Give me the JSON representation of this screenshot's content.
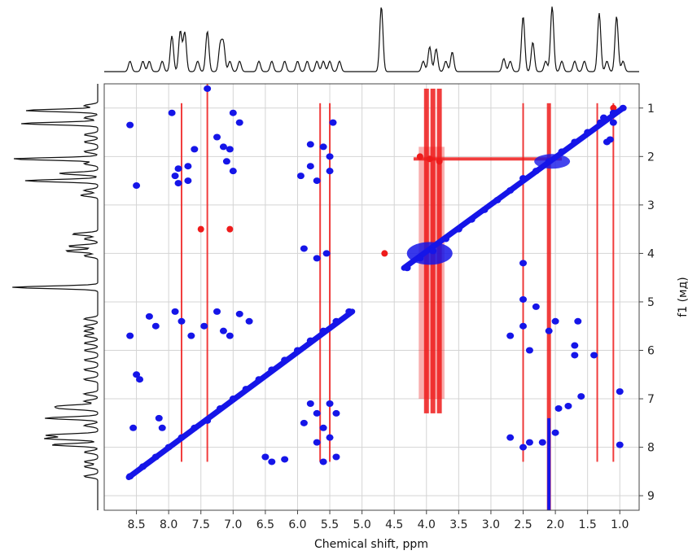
{
  "chart_data": {
    "type": "scatter",
    "subtype": "2D NMR contour plot (positive/negative cross-peaks) with 1D projections",
    "title": "",
    "xlabel": "Chemical shift, ppm",
    "ylabel": "f1 (мд)",
    "xlim": [
      9.0,
      0.7
    ],
    "ylim": [
      0.5,
      9.3
    ],
    "x_ticks": [
      "8.5",
      "8.0",
      "7.5",
      "7.0",
      "6.5",
      "6.0",
      "5.5",
      "5.0",
      "4.5",
      "4.0",
      "3.5",
      "3.0",
      "2.5",
      "2.0",
      "1.5",
      "1.0"
    ],
    "y_ticks": [
      "1",
      "2",
      "3",
      "4",
      "5",
      "6",
      "7",
      "8",
      "9"
    ],
    "grid": true,
    "colors": {
      "positive": "#1515e8",
      "negative": "#ee1b1b",
      "projection": "#111111",
      "grid": "#d4d4d4"
    },
    "series": [
      {
        "name": "positive (blue)",
        "points": [
          [
            8.6,
            8.6
          ],
          [
            8.4,
            8.4
          ],
          [
            8.2,
            8.2
          ],
          [
            8.0,
            8.0
          ],
          [
            7.8,
            7.8
          ],
          [
            7.6,
            7.6
          ],
          [
            7.4,
            7.45
          ],
          [
            7.2,
            7.2
          ],
          [
            7.0,
            7.0
          ],
          [
            6.8,
            6.8
          ],
          [
            6.6,
            6.6
          ],
          [
            6.4,
            6.4
          ],
          [
            6.2,
            6.2
          ],
          [
            6.0,
            6.0
          ],
          [
            5.8,
            5.8
          ],
          [
            5.6,
            5.6
          ],
          [
            5.4,
            5.4
          ],
          [
            5.2,
            5.2
          ],
          [
            4.3,
            4.3
          ],
          [
            4.1,
            4.1
          ],
          [
            3.9,
            3.95
          ],
          [
            3.7,
            3.7
          ],
          [
            3.5,
            3.5
          ],
          [
            3.3,
            3.3
          ],
          [
            3.1,
            3.1
          ],
          [
            2.9,
            2.9
          ],
          [
            2.7,
            2.7
          ],
          [
            2.5,
            2.45
          ],
          [
            2.3,
            2.3
          ],
          [
            2.1,
            2.1
          ],
          [
            1.9,
            1.9
          ],
          [
            1.7,
            1.7
          ],
          [
            1.5,
            1.5
          ],
          [
            1.3,
            1.3
          ],
          [
            1.1,
            1.1
          ],
          [
            0.95,
            1.0
          ],
          [
            7.95,
            1.1
          ],
          [
            7.4,
            0.6
          ],
          [
            7.0,
            1.1
          ],
          [
            6.9,
            1.3
          ],
          [
            7.25,
            1.6
          ],
          [
            7.15,
            1.8
          ],
          [
            7.05,
            1.85
          ],
          [
            7.6,
            1.85
          ],
          [
            7.1,
            2.1
          ],
          [
            7.0,
            2.3
          ],
          [
            7.7,
            2.2
          ],
          [
            7.85,
            2.25
          ],
          [
            7.9,
            2.4
          ],
          [
            7.85,
            2.55
          ],
          [
            7.7,
            2.5
          ],
          [
            8.6,
            1.35
          ],
          [
            8.5,
            2.6
          ],
          [
            8.55,
            7.6
          ],
          [
            8.3,
            5.3
          ],
          [
            8.2,
            5.5
          ],
          [
            8.6,
            5.7
          ],
          [
            8.5,
            6.5
          ],
          [
            8.45,
            6.6
          ],
          [
            8.15,
            7.4
          ],
          [
            8.1,
            7.6
          ],
          [
            7.9,
            5.2
          ],
          [
            7.8,
            5.4
          ],
          [
            7.65,
            5.7
          ],
          [
            7.45,
            5.5
          ],
          [
            7.25,
            5.2
          ],
          [
            7.15,
            5.6
          ],
          [
            7.05,
            5.7
          ],
          [
            6.9,
            5.25
          ],
          [
            6.75,
            5.4
          ],
          [
            6.5,
            8.2
          ],
          [
            6.4,
            8.3
          ],
          [
            6.2,
            8.25
          ],
          [
            5.8,
            7.1
          ],
          [
            5.7,
            7.3
          ],
          [
            5.6,
            7.6
          ],
          [
            5.5,
            7.8
          ],
          [
            5.4,
            7.3
          ],
          [
            5.5,
            7.1
          ],
          [
            5.7,
            7.9
          ],
          [
            5.9,
            7.5
          ],
          [
            5.6,
            8.3
          ],
          [
            5.4,
            8.2
          ],
          [
            5.95,
            2.4
          ],
          [
            5.8,
            2.2
          ],
          [
            5.7,
            2.5
          ],
          [
            5.5,
            2.3
          ],
          [
            5.6,
            1.8
          ],
          [
            5.45,
            1.3
          ],
          [
            5.5,
            2.0
          ],
          [
            5.8,
            1.75
          ],
          [
            5.9,
            3.9
          ],
          [
            5.7,
            4.1
          ],
          [
            5.55,
            4.0
          ],
          [
            2.7,
            7.8
          ],
          [
            2.5,
            8.0
          ],
          [
            2.4,
            7.9
          ],
          [
            2.2,
            7.9
          ],
          [
            2.0,
            7.7
          ],
          [
            2.7,
            5.7
          ],
          [
            2.5,
            5.5
          ],
          [
            2.1,
            5.6
          ],
          [
            2.0,
            5.4
          ],
          [
            1.7,
            5.9
          ],
          [
            1.65,
            5.4
          ],
          [
            1.7,
            6.1
          ],
          [
            1.6,
            6.95
          ],
          [
            1.8,
            7.15
          ],
          [
            1.95,
            7.2
          ],
          [
            1.4,
            6.1
          ],
          [
            1.25,
            1.2
          ],
          [
            1.1,
            1.3
          ],
          [
            1.2,
            1.7
          ],
          [
            1.15,
            1.65
          ],
          [
            1.0,
            6.85
          ],
          [
            1.0,
            7.95
          ],
          [
            2.3,
            5.1
          ],
          [
            2.5,
            4.95
          ],
          [
            2.4,
            6.0
          ],
          [
            2.5,
            4.2
          ]
        ]
      },
      {
        "name": "negative (red)",
        "vertical_streaks_x": [
          7.8,
          7.4,
          5.65,
          5.5,
          4.0,
          3.9,
          3.8,
          2.5,
          2.1,
          1.35,
          1.1
        ],
        "horizontal_streaks_y": [
          2.05
        ],
        "points": [
          [
            4.1,
            2.0
          ],
          [
            3.95,
            2.05
          ],
          [
            3.8,
            2.1
          ],
          [
            7.5,
            3.5
          ],
          [
            7.05,
            3.5
          ],
          [
            4.65,
            4.0
          ],
          [
            1.1,
            1.0
          ],
          [
            2.1,
            2.1
          ]
        ]
      }
    ],
    "projection_peaks_ppm": [
      8.6,
      8.4,
      8.3,
      8.1,
      7.95,
      7.82,
      7.75,
      7.55,
      7.4,
      7.2,
      7.15,
      7.05,
      6.9,
      6.6,
      6.4,
      6.2,
      6.0,
      5.85,
      5.7,
      5.6,
      5.5,
      5.35,
      4.7,
      4.05,
      3.95,
      3.85,
      3.7,
      3.6,
      2.8,
      2.7,
      2.5,
      2.35,
      2.15,
      2.05,
      1.9,
      1.7,
      1.55,
      1.32,
      1.2,
      1.05,
      0.95
    ]
  }
}
